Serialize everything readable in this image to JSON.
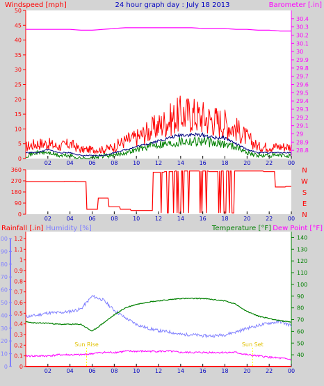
{
  "window": {
    "title": "24 hour graph day : July 18 2013"
  },
  "colors": {
    "background": "#d4d4d4",
    "panel": "#ffffff",
    "wind_avg": "#ff0000",
    "wind_speed": "#008000",
    "wind_gust": "#000080",
    "barometer": "#ff00ff",
    "direction": "#ff0000",
    "rainfall": "#ff0000",
    "humidity": "#8080ff",
    "temperature": "#008000",
    "dewpoint": "#ff00ff",
    "sun_marker": "#ffff00"
  },
  "chart_data": [
    {
      "type": "line",
      "title": "24 hour graph day : July 18 2013",
      "ylabel_left": "Windspeed [mph]",
      "ylabel_right": "Barometer [.in]",
      "ylim_left": [
        0,
        50
      ],
      "yticks_left": [
        "0",
        "5",
        "10",
        "15",
        "20",
        "25",
        "30",
        "35",
        "40",
        "45",
        "50"
      ],
      "ylim_right": [
        28.7,
        30.5
      ],
      "yticks_right": [
        "28.8",
        "28.9",
        "29",
        "29.1",
        "29.2",
        "29.3",
        "29.4",
        "29.5",
        "29.6",
        "29.7",
        "29.8",
        "29.9",
        "30",
        "30.1",
        "30.2",
        "30.3",
        "30.4"
      ],
      "x_ticks": [
        "02",
        "04",
        "06",
        "08",
        "10",
        "12",
        "14",
        "16",
        "18",
        "20",
        "22",
        "00"
      ],
      "x_hours": [
        0,
        1,
        2,
        3,
        4,
        5,
        6,
        7,
        8,
        9,
        10,
        11,
        12,
        13,
        14,
        15,
        16,
        17,
        18,
        19,
        20,
        21,
        22,
        23,
        24
      ],
      "series": [
        {
          "key": "barometer",
          "axis": "right",
          "values": [
            30.27,
            30.27,
            30.27,
            30.27,
            30.27,
            30.26,
            30.26,
            30.27,
            30.28,
            30.29,
            30.29,
            30.29,
            30.29,
            30.29,
            30.29,
            30.29,
            30.28,
            30.28,
            30.28,
            30.27,
            30.27,
            30.26,
            30.26,
            30.25,
            30.25
          ]
        },
        {
          "key": "wind_avg",
          "axis": "left",
          "values": [
            4,
            5,
            5,
            4,
            5,
            3,
            3,
            3,
            4,
            6,
            7,
            9,
            11,
            13,
            15,
            15,
            14,
            13,
            12,
            10,
            7,
            4,
            4,
            4,
            4
          ]
        },
        {
          "key": "wind_speed",
          "axis": "left",
          "values": [
            1,
            2,
            2,
            1,
            1,
            0,
            0,
            1,
            1,
            2,
            3,
            4,
            5,
            5,
            6,
            6,
            6,
            5,
            5,
            4,
            2,
            1,
            1,
            1,
            1
          ]
        },
        {
          "key": "wind_gust",
          "axis": "left",
          "values": [
            2,
            2,
            3,
            2,
            2,
            1,
            1,
            1,
            2,
            3,
            4,
            5,
            6,
            7,
            8,
            8,
            8,
            7,
            7,
            5,
            3,
            2,
            2,
            2,
            2
          ]
        }
      ]
    },
    {
      "type": "line",
      "ylim": [
        0,
        360
      ],
      "yticks_left": [
        "0",
        "90",
        "180",
        "270",
        "360"
      ],
      "yticks_right": [
        "N",
        "E",
        "S",
        "W",
        "N"
      ],
      "x_ticks": [
        "02",
        "04",
        "06",
        "08",
        "10",
        "12",
        "14",
        "16",
        "18",
        "20",
        "22",
        "00"
      ],
      "x_hours": [
        0,
        1,
        2,
        3,
        4,
        5,
        6,
        7,
        8,
        9,
        10,
        11,
        12,
        13,
        14,
        15,
        16,
        17,
        18,
        19,
        20,
        21,
        22,
        23,
        24
      ],
      "series": [
        {
          "key": "direction",
          "values": [
            262,
            262,
            262,
            262,
            265,
            262,
            40,
            130,
            60,
            40,
            30,
            30,
            340,
            345,
            350,
            350,
            350,
            345,
            350,
            350,
            350,
            350,
            345,
            220,
            225
          ]
        }
      ]
    },
    {
      "type": "line",
      "ylabel_left": "Rainfall [.in]",
      "ylabel_humidity": "Humidity [%]",
      "ylabel_temperature": "Temperature [°F]",
      "ylabel_dewpoint": "Dew Point [°F]",
      "ylim_rain": [
        0,
        1.2
      ],
      "yticks_rain": [
        "0",
        "0.1",
        "0.2",
        "0.3",
        "0.4",
        "0.5",
        "0.6",
        "0.7",
        "0.8",
        "0.9",
        "1",
        "1.1",
        "1.2"
      ],
      "ylim_humidity": [
        0,
        100
      ],
      "yticks_humidity": [
        "0",
        "10",
        "20",
        "30",
        "40",
        "50",
        "60",
        "70",
        "80",
        "90",
        "100"
      ],
      "ylim_temp": [
        30,
        145
      ],
      "yticks_temp": [
        "40",
        "50",
        "60",
        "70",
        "80",
        "90",
        "100",
        "110",
        "120",
        "130",
        "140"
      ],
      "x_ticks": [
        "02",
        "04",
        "06",
        "08",
        "10",
        "12",
        "14",
        "16",
        "18",
        "20",
        "22",
        "00"
      ],
      "x_hours": [
        0,
        1,
        2,
        3,
        4,
        5,
        6,
        7,
        8,
        9,
        10,
        11,
        12,
        13,
        14,
        15,
        16,
        17,
        18,
        19,
        20,
        21,
        22,
        23,
        24
      ],
      "sun_labels": [
        "Sun Rise",
        "Sun Set"
      ],
      "sun_hours": [
        5.5,
        20.5
      ],
      "series": [
        {
          "key": "humidity",
          "axis": "humidity",
          "values": [
            39,
            40,
            42,
            42,
            43,
            45,
            55,
            52,
            44,
            38,
            33,
            30,
            28,
            27,
            25,
            25,
            24,
            24,
            25,
            27,
            30,
            32,
            34,
            35,
            32
          ]
        },
        {
          "key": "temperature",
          "axis": "temp",
          "values": [
            68,
            67,
            67,
            66,
            66,
            66,
            60,
            67,
            74,
            80,
            83,
            85,
            86,
            87,
            88,
            88,
            88,
            87,
            86,
            83,
            77,
            73,
            71,
            69,
            68
          ]
        },
        {
          "key": "dewpoint",
          "axis": "temp",
          "values": [
            39,
            39,
            39,
            40,
            40,
            40,
            41,
            42,
            42,
            43,
            43,
            43,
            43,
            43,
            42,
            42,
            42,
            42,
            42,
            42,
            40,
            39,
            38,
            37,
            36
          ]
        },
        {
          "key": "rainfall",
          "axis": "rain",
          "values": [
            0,
            0,
            0,
            0,
            0,
            0,
            0,
            0,
            0,
            0,
            0,
            0,
            0,
            0,
            0,
            0,
            0,
            0,
            0,
            0,
            0,
            0,
            0,
            0,
            0
          ]
        }
      ]
    }
  ]
}
